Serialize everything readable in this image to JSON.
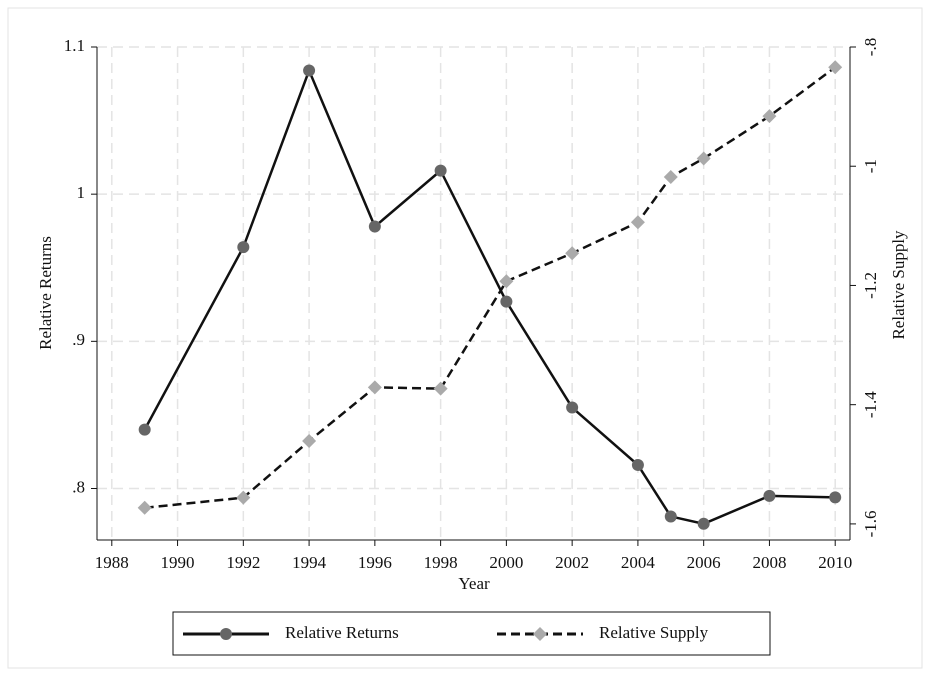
{
  "chart_data": {
    "type": "line",
    "x_label": "Year",
    "y_label": "Relative Returns",
    "y2_label": "Relative Supply",
    "x": [
      1989,
      1992,
      1994,
      1996,
      1998,
      2000,
      2002,
      2004,
      2005,
      2006,
      2008,
      2010
    ],
    "series": [
      {
        "name": "Relative Returns",
        "color": "#111111",
        "marker_color": "#666666",
        "line_style": "solid",
        "marker": "circle",
        "values": [
          0.84,
          0.964,
          1.084,
          0.978,
          1.016,
          0.927,
          0.855,
          0.816,
          0.781,
          0.776,
          0.795,
          0.794
        ]
      },
      {
        "name": "Relative Supply",
        "color": "#111111",
        "marker_color": "#aaaaaa",
        "line_style": "dashed",
        "marker": "diamond",
        "axis": "y2",
        "values": [
          -1.573,
          -1.556,
          -1.461,
          -1.371,
          -1.373,
          -1.193,
          -1.146,
          -1.094,
          -1.018,
          -0.987,
          -0.916,
          -0.834
        ]
      }
    ],
    "xlim": [
      1987.55,
      2010.45
    ],
    "xticks": [
      1988,
      1990,
      1992,
      1994,
      1996,
      1998,
      2000,
      2002,
      2004,
      2006,
      2008,
      2010
    ],
    "ylim": [
      0.765,
      1.1
    ],
    "yticks": [
      {
        "value": 0.8,
        "label": ".8"
      },
      {
        "value": 0.9,
        "label": ".9"
      },
      1,
      1.1
    ],
    "y2lim": [
      -1.627,
      -0.8
    ],
    "y2ticks": [
      {
        "value": -1.6,
        "label": "-1.6"
      },
      {
        "value": -1.4,
        "label": "-1.4"
      },
      {
        "value": -1.2,
        "label": "-1.2"
      },
      -1,
      {
        "value": -0.8,
        "label": "-.8"
      }
    ],
    "grid": true
  }
}
